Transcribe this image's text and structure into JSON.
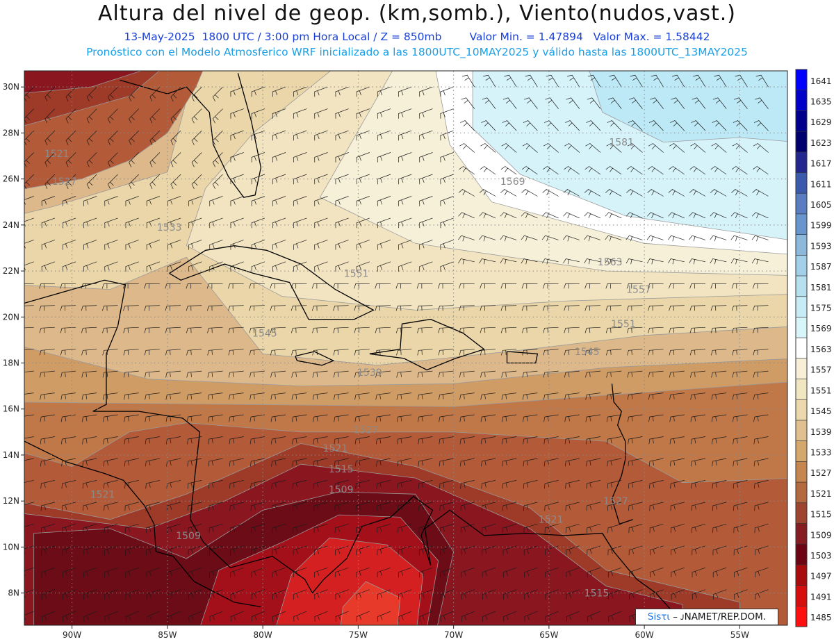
{
  "header": {
    "title": "Altura del nivel de geop. (km,somb.), Viento(nudos,vast.)",
    "date": "13-May-2025",
    "time": "1800 UTC / 3:00 pm Hora Local / Z = 850mb",
    "min": "Valor Min. = 1.47894",
    "max": "Valor Max. = 1.58442",
    "forecast": "Pronóstico con el Modelo Atmosferico WRF inicializado a las 1800UTC_10MAY2025 y válido hasta las  1800UTC_13MAY2025"
  },
  "map": {
    "lon_range": [
      -92.5,
      -52.5
    ],
    "lat_range": [
      6.6,
      30.7
    ],
    "lon_ticks": [
      "90W",
      "85W",
      "80W",
      "75W",
      "70W",
      "65W",
      "60W",
      "55W"
    ],
    "lat_ticks": [
      "8N",
      "10N",
      "12N",
      "14N",
      "16N",
      "18N",
      "20N",
      "22N",
      "24N",
      "26N",
      "28N",
      "30N"
    ],
    "contour_labels": [
      {
        "text": "1521",
        "lon": -90.8,
        "lat": 27.1
      },
      {
        "text": "1527",
        "lon": -90.4,
        "lat": 25.9
      },
      {
        "text": "1533",
        "lon": -84.9,
        "lat": 23.9
      },
      {
        "text": "1551",
        "lon": -75.1,
        "lat": 21.9
      },
      {
        "text": "1545",
        "lon": -79.9,
        "lat": 19.3
      },
      {
        "text": "1539",
        "lon": -74.4,
        "lat": 17.6
      },
      {
        "text": "1521",
        "lon": -76.2,
        "lat": 14.3
      },
      {
        "text": "1527",
        "lon": -74.6,
        "lat": 15.1
      },
      {
        "text": "1515",
        "lon": -75.9,
        "lat": 13.4
      },
      {
        "text": "1509",
        "lon": -75.9,
        "lat": 12.5
      },
      {
        "text": "1509",
        "lon": -83.9,
        "lat": 10.5
      },
      {
        "text": "1521",
        "lon": -88.4,
        "lat": 12.3
      },
      {
        "text": "1569",
        "lon": -66.9,
        "lat": 25.9
      },
      {
        "text": "1581",
        "lon": -61.2,
        "lat": 27.6
      },
      {
        "text": "1563",
        "lon": -61.8,
        "lat": 22.4
      },
      {
        "text": "1557",
        "lon": -60.3,
        "lat": 21.2
      },
      {
        "text": "1551",
        "lon": -61.1,
        "lat": 19.7
      },
      {
        "text": "1545",
        "lon": -63.0,
        "lat": 18.5
      },
      {
        "text": "1527",
        "lon": -61.5,
        "lat": 12.0
      },
      {
        "text": "1521",
        "lon": -64.9,
        "lat": 11.2
      },
      {
        "text": "1515",
        "lon": -62.5,
        "lat": 8.0
      }
    ],
    "colors": {
      "low3": "#d42020",
      "low2": "#a4101a",
      "low1": "#6c0c16",
      "b1509": "#8a1620",
      "b1515": "#9e3a28",
      "b1521": "#b35a38",
      "b1527": "#c07848",
      "b1533": "#d09c66",
      "b1539": "#dcb88a",
      "b1545": "#ead6a8",
      "b1551": "#f2e4c0",
      "b1557": "#f7f0d8",
      "b1563": "#ffffff",
      "b1569": "#d6f3fa",
      "b1575": "#bde9f7"
    }
  },
  "colorbar": {
    "levels": [
      "1641",
      "1635",
      "1629",
      "1623",
      "1617",
      "1611",
      "1605",
      "1599",
      "1593",
      "1587",
      "1581",
      "1575",
      "1569",
      "1563",
      "1557",
      "1551",
      "1545",
      "1539",
      "1533",
      "1527",
      "1521",
      "1515",
      "1509",
      "1503",
      "1497",
      "1491",
      "1485"
    ],
    "colors": [
      "#0000ff",
      "#0000c8",
      "#00008c",
      "#00006e",
      "#232891",
      "#3c5aac",
      "#5a7cc0",
      "#6896cc",
      "#8cb8dc",
      "#a2d0e8",
      "#b6e0ee",
      "#c8ecf6",
      "#d8f5fa",
      "#ffffff",
      "#f7efd8",
      "#f1e6c2",
      "#ebd9ad",
      "#dfc08e",
      "#d4a76c",
      "#c58650",
      "#b46a3f",
      "#9e4530",
      "#861d22",
      "#6e0512",
      "#a80c0c",
      "#d60e0e",
      "#ff1010"
    ]
  },
  "credit": {
    "highlight": "Sisτι",
    "text": " – ᴊNAMET/REP.DOM."
  }
}
